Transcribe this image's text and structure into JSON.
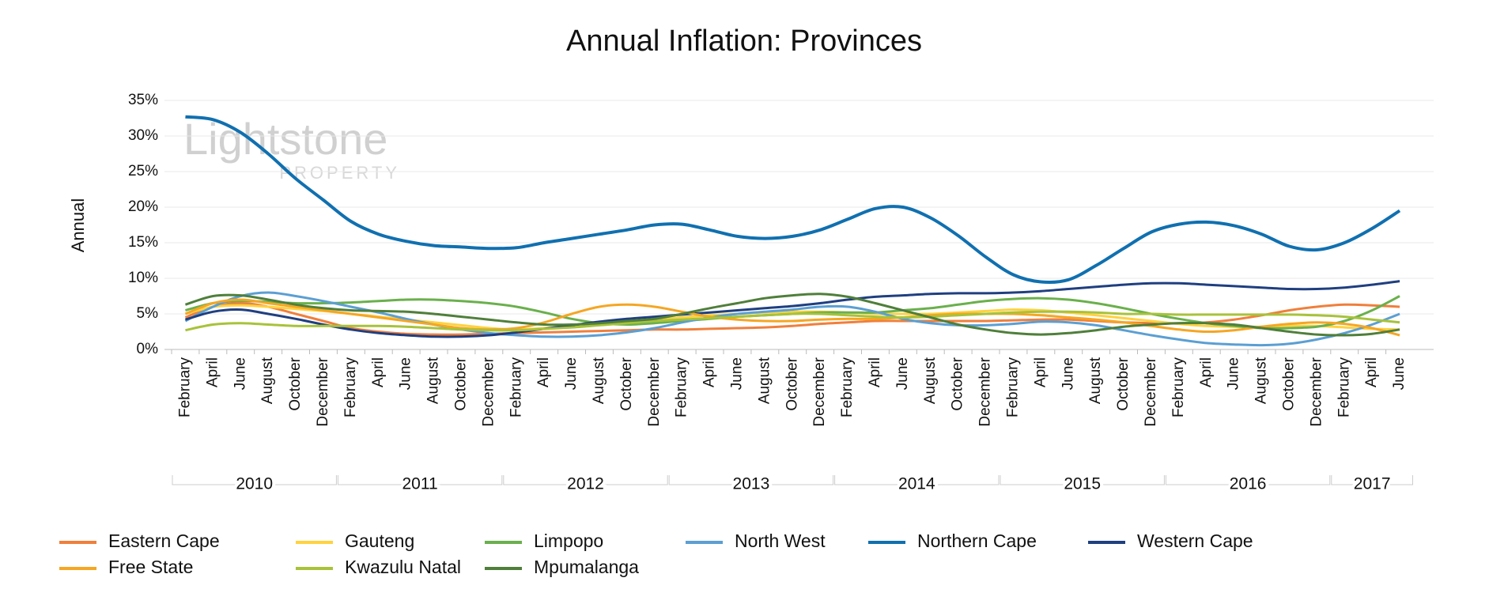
{
  "chart_data": {
    "type": "line",
    "title": "Annual Inflation: Provinces",
    "y_label": "Annual",
    "watermark": {
      "brand": "Lightstone",
      "sub": "PROPERTY"
    },
    "categories": [
      "February",
      "April",
      "June",
      "August",
      "October",
      "December",
      "February",
      "April",
      "June",
      "August",
      "October",
      "December",
      "February",
      "April",
      "June",
      "August",
      "October",
      "December",
      "February",
      "April",
      "June",
      "August",
      "October",
      "December",
      "February",
      "April",
      "June",
      "August",
      "October",
      "December",
      "February",
      "April",
      "June",
      "August",
      "October",
      "December",
      "February",
      "April",
      "June",
      "August",
      "October",
      "December",
      "February",
      "April",
      "June"
    ],
    "years": [
      "2010",
      "2011",
      "2012",
      "2013",
      "2014",
      "2015",
      "2016",
      "2017"
    ],
    "ylim": [
      0,
      35
    ],
    "yticks": [
      {
        "value": 0,
        "label": "0%"
      },
      {
        "value": 5,
        "label": "5%"
      },
      {
        "value": 10,
        "label": "10%"
      },
      {
        "value": 15,
        "label": "15%"
      },
      {
        "value": 20,
        "label": "20%"
      },
      {
        "value": 25,
        "label": "25%"
      },
      {
        "value": 30,
        "label": "30%"
      },
      {
        "value": 35,
        "label": "35%"
      }
    ],
    "grid": true,
    "legend": "bottom",
    "series": [
      {
        "name": "Eastern Cape",
        "color": "#f07f3c",
        "values": [
          4.5,
          6,
          6.5,
          6,
          5,
          4,
          3,
          2.5,
          2.2,
          2.1,
          2.1,
          2.2,
          2.3,
          2.4,
          2.5,
          2.6,
          2.7,
          2.8,
          2.8,
          2.9,
          3,
          3.1,
          3.3,
          3.6,
          3.8,
          4,
          4,
          4,
          4,
          4,
          4.1,
          4.2,
          4.2,
          4,
          3.8,
          3.7,
          3.7,
          3.8,
          4.2,
          4.8,
          5.5,
          6,
          6.3,
          6.2,
          6
        ]
      },
      {
        "name": "Gauteng",
        "color": "#ffd23f",
        "values": [
          5,
          6,
          6.2,
          6,
          5.7,
          5.4,
          5,
          4.6,
          4.2,
          3.8,
          3.4,
          3,
          2.8,
          3,
          3.3,
          3.6,
          3.9,
          4.2,
          4.5,
          4.8,
          5,
          5.2,
          5.3,
          5.3,
          5.2,
          5,
          5,
          5,
          5.2,
          5.4,
          5.6,
          5.5,
          5.2,
          4.8,
          4.4,
          4,
          3.6,
          3.3,
          3.2,
          3.2,
          3.3,
          3.3,
          3.1,
          2.9,
          2.8
        ]
      },
      {
        "name": "Limpopo",
        "color": "#6ab04c",
        "values": [
          5.5,
          6.5,
          6.8,
          6.7,
          6.5,
          6.5,
          6.6,
          6.8,
          7,
          7,
          6.8,
          6.5,
          6,
          5.2,
          4.3,
          3.7,
          3.5,
          3.7,
          4,
          4.3,
          4.6,
          4.8,
          5,
          5.2,
          5.2,
          5.2,
          5.5,
          5.8,
          6.3,
          6.8,
          7.1,
          7.2,
          7,
          6.5,
          5.8,
          5,
          4.3,
          3.7,
          3.3,
          3,
          3,
          3.2,
          4,
          5.5,
          7.5
        ]
      },
      {
        "name": "North West",
        "color": "#5b9fd3",
        "values": [
          4,
          6,
          7.5,
          8,
          7.5,
          6.8,
          6,
          5.2,
          4.3,
          3.5,
          2.8,
          2.3,
          2,
          1.8,
          1.8,
          2,
          2.4,
          3,
          3.8,
          4.5,
          5,
          5.3,
          5.6,
          6,
          6,
          5.3,
          4.3,
          3.7,
          3.4,
          3.4,
          3.6,
          3.9,
          3.8,
          3.4,
          2.7,
          2,
          1.4,
          0.9,
          0.7,
          0.6,
          0.8,
          1.4,
          2.3,
          3.5,
          5
        ]
      },
      {
        "name": "Northern Cape",
        "color": "#1070b0",
        "values": [
          32.7,
          32.3,
          30.5,
          27.5,
          24,
          21,
          18,
          16.2,
          15.2,
          14.6,
          14.4,
          14.2,
          14.3,
          15,
          15.6,
          16.2,
          16.8,
          17.5,
          17.6,
          16.8,
          15.9,
          15.6,
          15.9,
          16.8,
          18.3,
          19.8,
          20,
          18.5,
          16,
          13,
          10.5,
          9.5,
          9.8,
          11.8,
          14.2,
          16.5,
          17.6,
          17.9,
          17.4,
          16.2,
          14.5,
          14,
          15,
          17,
          19.5
        ]
      },
      {
        "name": "Western Cape",
        "color": "#1f3f80",
        "values": [
          4.2,
          5.3,
          5.6,
          5,
          4.3,
          3.5,
          2.8,
          2.3,
          2,
          1.8,
          1.8,
          2,
          2.4,
          2.9,
          3.4,
          3.9,
          4.3,
          4.6,
          4.9,
          5.2,
          5.5,
          5.8,
          6.1,
          6.5,
          7,
          7.4,
          7.6,
          7.8,
          7.9,
          7.9,
          8,
          8.2,
          8.5,
          8.8,
          9.1,
          9.3,
          9.3,
          9.1,
          8.9,
          8.7,
          8.5,
          8.5,
          8.7,
          9.1,
          9.6
        ]
      },
      {
        "name": "Free State",
        "color": "#f5a623",
        "values": [
          5,
          6.5,
          7,
          6.5,
          6,
          5.5,
          5,
          4.5,
          4,
          3.5,
          3,
          2.8,
          3,
          3.8,
          5,
          6,
          6.3,
          6,
          5.3,
          4.6,
          4.2,
          4,
          4,
          4.2,
          4.3,
          4.3,
          4.5,
          4.8,
          5,
          5,
          5,
          4.8,
          4.5,
          4.2,
          3.8,
          3.3,
          2.8,
          2.5,
          2.7,
          3.2,
          3.6,
          3.8,
          3.6,
          3,
          2
        ]
      },
      {
        "name": "Kwazulu Natal",
        "color": "#a8c23a",
        "values": [
          2.7,
          3.5,
          3.7,
          3.5,
          3.3,
          3.3,
          3.3,
          3.3,
          3.2,
          3,
          2.8,
          2.7,
          2.7,
          2.9,
          3.1,
          3.4,
          3.7,
          4,
          4.2,
          4.4,
          4.6,
          4.8,
          5,
          5,
          4.8,
          4.6,
          4.5,
          4.6,
          4.8,
          5,
          5.2,
          5.3,
          5.3,
          5.2,
          5,
          5,
          4.9,
          4.9,
          4.9,
          4.9,
          4.9,
          4.8,
          4.6,
          4.2,
          3.8
        ]
      },
      {
        "name": "Mpumalanga",
        "color": "#4f7f3a",
        "values": [
          6.3,
          7.5,
          7.6,
          7,
          6.3,
          5.8,
          5.5,
          5.4,
          5.3,
          5,
          4.6,
          4.2,
          3.8,
          3.5,
          3.5,
          3.7,
          4,
          4.3,
          5,
          5.8,
          6.5,
          7.2,
          7.6,
          7.8,
          7.4,
          6.5,
          5.5,
          4.5,
          3.5,
          2.8,
          2.3,
          2.1,
          2.3,
          2.7,
          3.2,
          3.5,
          3.7,
          3.7,
          3.5,
          3,
          2.5,
          2.1,
          2,
          2.2,
          2.8
        ]
      }
    ]
  }
}
